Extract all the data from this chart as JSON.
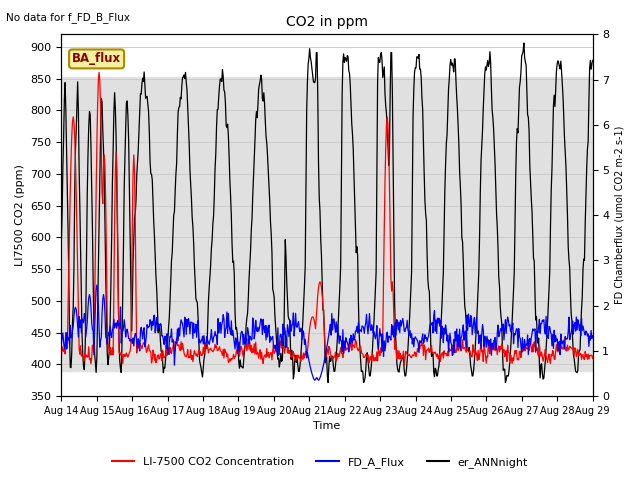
{
  "title": "CO2 in ppm",
  "top_left_text": "No data for f_FD_B_Flux",
  "legend_box_text": "BA_flux",
  "xlabel": "Time",
  "ylabel_left": "LI7500 CO2 (ppm)",
  "ylabel_right": "FD Chamberflux (umol CO2 m-2 s-1)",
  "ylim_left": [
    350,
    920
  ],
  "ylim_right": [
    0.0,
    8.0
  ],
  "yticks_left": [
    350,
    400,
    450,
    500,
    550,
    600,
    650,
    700,
    750,
    800,
    850,
    900
  ],
  "yticks_right": [
    0.0,
    1.0,
    2.0,
    3.0,
    4.0,
    5.0,
    6.0,
    7.0,
    8.0
  ],
  "xtick_labels": [
    "Aug 14",
    "Aug 15",
    "Aug 16",
    "Aug 17",
    "Aug 18",
    "Aug 19",
    "Aug 20",
    "Aug 21",
    "Aug 22",
    "Aug 23",
    "Aug 24",
    "Aug 25",
    "Aug 26",
    "Aug 27",
    "Aug 28",
    "Aug 29"
  ],
  "color_red": "#ff0000",
  "color_blue": "#0000ff",
  "color_black": "#000000",
  "legend_labels": [
    "LI-7500 CO2 Concentration",
    "FD_A_Flux",
    "er_ANNnight"
  ],
  "shading_color": "#e0e0e0",
  "shading_ylim": [
    390,
    852
  ],
  "grid_color": "#cccccc",
  "figsize": [
    6.4,
    4.8
  ],
  "dpi": 100
}
